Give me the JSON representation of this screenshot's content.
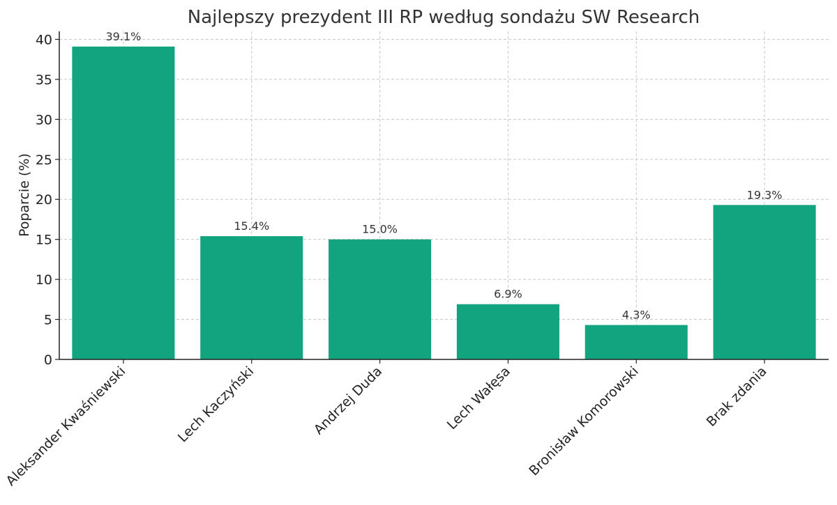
{
  "chart_data": {
    "type": "bar",
    "title": "Najlepszy prezydent III RP według sondażu SW Research",
    "xlabel": "",
    "ylabel": "Poparcie (%)",
    "categories": [
      "Aleksander Kwaśniewski",
      "Lech Kaczyński",
      "Andrzej Duda",
      "Lech Wałęsa",
      "Bronisław Komorowski",
      "Brak zdania"
    ],
    "values": [
      39.1,
      15.4,
      15.0,
      6.9,
      4.3,
      19.3
    ],
    "data_labels": [
      "39.1%",
      "15.4%",
      "15.0%",
      "6.9%",
      "4.3%",
      "19.3%"
    ],
    "ylim": [
      0,
      41
    ],
    "yticks": [
      0,
      5,
      10,
      15,
      20,
      25,
      30,
      35,
      40
    ],
    "grid": true,
    "bar_color": "#12a37f"
  }
}
